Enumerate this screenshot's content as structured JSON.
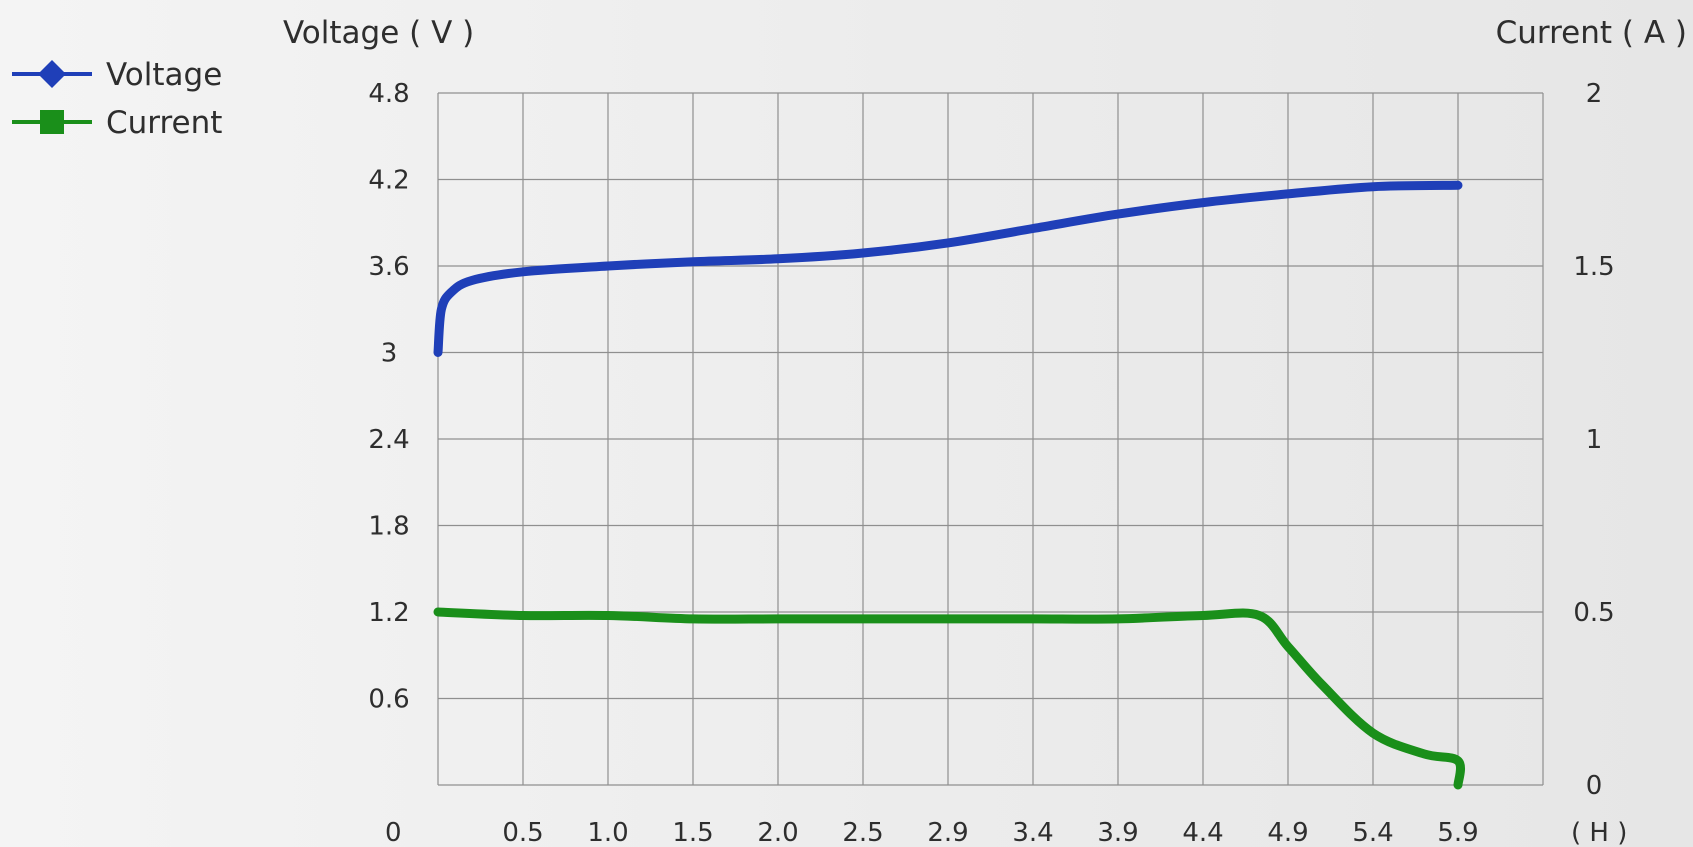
{
  "chart_data": {
    "type": "line",
    "title": "",
    "left_axis_label": "Voltage ( V )",
    "right_axis_label": "Current ( A )",
    "x_unit_label": "( H )",
    "x_origin_label": "0",
    "x_ticks": [
      "0.5",
      "1.0",
      "1.5",
      "2.0",
      "2.5",
      "2.9",
      "3.4",
      "3.9",
      "4.4",
      "4.9",
      "5.4",
      "5.9"
    ],
    "y_left_ticks": [
      "4.8",
      "4.2",
      "3.6",
      "3",
      "2.4",
      "1.8",
      "1.2",
      "0.6"
    ],
    "y_right_ticks": [
      "2",
      "1.5",
      "1",
      "0.5",
      "0"
    ],
    "ylim_left": [
      0,
      4.8
    ],
    "ylim_right": [
      0,
      2
    ],
    "xlim": [
      0,
      5.9
    ],
    "grid": true,
    "legend_position": "top-left",
    "series": [
      {
        "name": "Voltage",
        "axis": "left",
        "color": "#1f3fb8",
        "marker": "diamond",
        "x": [
          0,
          0.02,
          0.08,
          0.2,
          0.5,
          1.0,
          1.5,
          2.0,
          2.5,
          2.9,
          3.4,
          3.9,
          4.4,
          4.9,
          5.4,
          5.9
        ],
        "values": [
          3.0,
          3.3,
          3.42,
          3.5,
          3.56,
          3.6,
          3.63,
          3.65,
          3.69,
          3.76,
          3.86,
          3.96,
          4.04,
          4.1,
          4.15,
          4.16
        ]
      },
      {
        "name": "Current",
        "axis": "right",
        "color": "#1a8f1a",
        "marker": "square",
        "x": [
          0,
          0.5,
          1.0,
          1.5,
          2.0,
          2.5,
          2.9,
          3.4,
          3.9,
          4.4,
          4.73,
          4.9,
          5.1,
          5.4,
          5.7,
          5.9,
          5.9
        ],
        "values": [
          0.5,
          0.49,
          0.49,
          0.48,
          0.48,
          0.48,
          0.48,
          0.48,
          0.48,
          0.49,
          0.49,
          0.4,
          0.29,
          0.15,
          0.09,
          0.07,
          0.0
        ]
      }
    ]
  }
}
